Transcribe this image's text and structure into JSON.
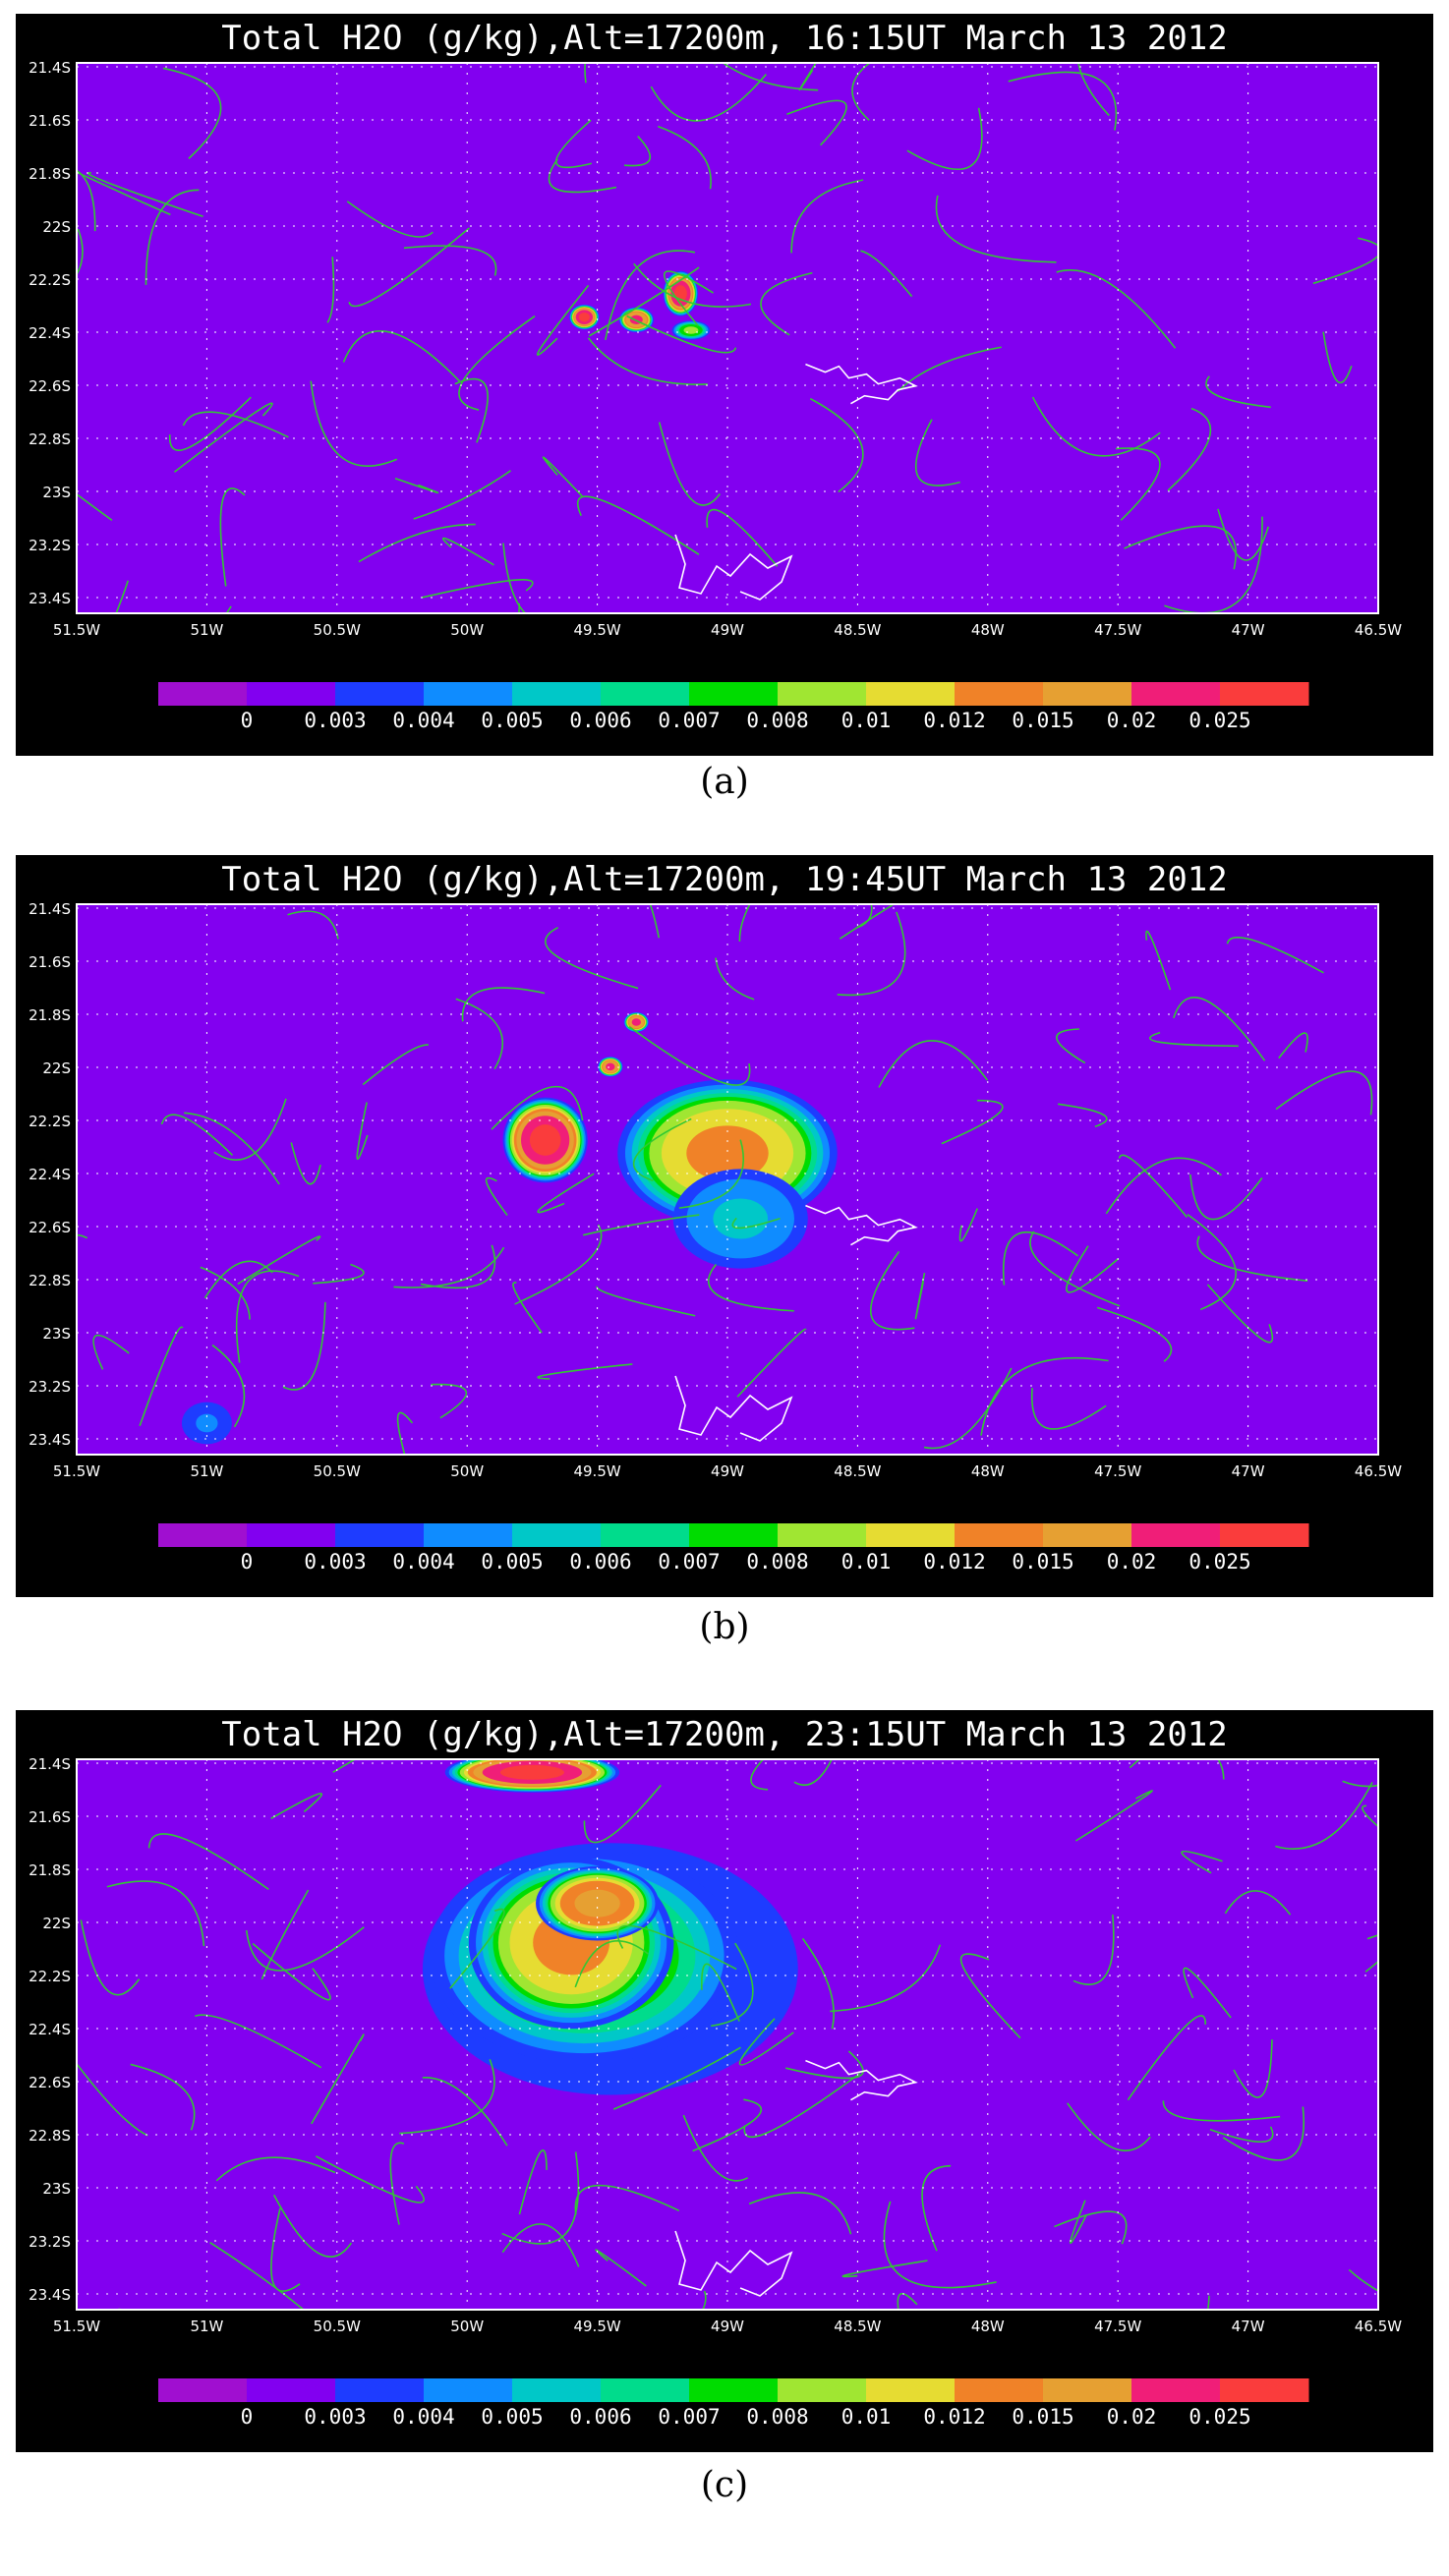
{
  "colorbar": {
    "labels": [
      "0",
      "0.003",
      "0.004",
      "0.005",
      "0.006",
      "0.007",
      "0.008",
      "0.01",
      "0.012",
      "0.015",
      "0.02",
      "0.025"
    ],
    "colors": [
      "#a00fd0",
      "#8200f0",
      "#1e3cff",
      "#0f8cff",
      "#00c8c8",
      "#00dc8c",
      "#00dc00",
      "#a0e632",
      "#e6dc32",
      "#f08228",
      "#e6a032",
      "#f01e78",
      "#fa3c3c"
    ]
  },
  "map": {
    "lat_ticks": [
      "21.4S",
      "21.6S",
      "21.8S",
      "22S",
      "22.2S",
      "22.4S",
      "22.6S",
      "22.8S",
      "23S",
      "23.2S",
      "23.4S"
    ],
    "lon_ticks": [
      "51.5W",
      "51W",
      "50.5W",
      "50W",
      "49.5W",
      "49W",
      "48.5W",
      "48W",
      "47.5W",
      "47W",
      "46.5W"
    ],
    "background_color": "#8200f0",
    "streamline_color": "#32c832"
  },
  "chart_data": [
    {
      "type": "heatmap",
      "title": "Total H2O (g/kg),Alt=17200m, 16:15UT March 13 2012",
      "caption": "(a)",
      "variable": "Total H2O (g/kg)",
      "altitude_m": 17200,
      "time": "16:15UT March 13 2012",
      "lon_range": [
        -51.5,
        -46.5
      ],
      "lat_range": [
        -23.5,
        -21.4
      ],
      "blobs": [
        {
          "lon": -49.55,
          "lat": -22.37,
          "rx": 0.06,
          "ry": 0.05,
          "peak": 0.025
        },
        {
          "lon": -49.35,
          "lat": -22.38,
          "rx": 0.07,
          "ry": 0.05,
          "peak": 0.02
        },
        {
          "lon": -49.18,
          "lat": -22.28,
          "rx": 0.07,
          "ry": 0.09,
          "peak": 0.025
        },
        {
          "lon": -49.14,
          "lat": -22.42,
          "rx": 0.08,
          "ry": 0.04,
          "peak": 0.008
        }
      ]
    },
    {
      "type": "heatmap",
      "title": "Total H2O (g/kg),Alt=17200m, 19:45UT March 13 2012",
      "caption": "(b)",
      "variable": "Total H2O (g/kg)",
      "altitude_m": 17200,
      "time": "19:45UT March 13 2012",
      "lon_range": [
        -51.5,
        -46.5
      ],
      "lat_range": [
        -23.5,
        -21.4
      ],
      "blobs": [
        {
          "lon": -49.7,
          "lat": -22.3,
          "rx": 0.17,
          "ry": 0.17,
          "peak": 0.025
        },
        {
          "lon": -49.0,
          "lat": -22.35,
          "rx": 0.45,
          "ry": 0.3,
          "peak": 0.012
        },
        {
          "lon": -48.95,
          "lat": -22.6,
          "rx": 0.3,
          "ry": 0.22,
          "peak": 0.005
        },
        {
          "lon": -49.35,
          "lat": -21.85,
          "rx": 0.05,
          "ry": 0.04,
          "peak": 0.02
        },
        {
          "lon": -49.45,
          "lat": -22.02,
          "rx": 0.05,
          "ry": 0.04,
          "peak": 0.02
        },
        {
          "lon": -51.0,
          "lat": -23.38,
          "rx": 0.12,
          "ry": 0.1,
          "peak": 0.004
        }
      ]
    },
    {
      "type": "heatmap",
      "title": "Total H2O (g/kg),Alt=17200m, 23:15UT March 13 2012",
      "caption": "(c)",
      "variable": "Total H2O (g/kg)",
      "altitude_m": 17200,
      "time": "23:15UT March 13 2012",
      "lon_range": [
        -51.5,
        -46.5
      ],
      "lat_range": [
        -23.5,
        -21.4
      ],
      "blobs": [
        {
          "lon": -49.45,
          "lat": -22.2,
          "rx": 0.9,
          "ry": 0.6,
          "peak": 0.004
        },
        {
          "lon": -49.55,
          "lat": -22.15,
          "rx": 0.65,
          "ry": 0.45,
          "peak": 0.008
        },
        {
          "lon": -49.6,
          "lat": -22.1,
          "rx": 0.42,
          "ry": 0.35,
          "peak": 0.012
        },
        {
          "lon": -49.5,
          "lat": -21.95,
          "rx": 0.25,
          "ry": 0.15,
          "peak": 0.015
        },
        {
          "lon": -49.75,
          "lat": -21.45,
          "rx": 0.35,
          "ry": 0.08,
          "peak": 0.025
        }
      ]
    }
  ]
}
